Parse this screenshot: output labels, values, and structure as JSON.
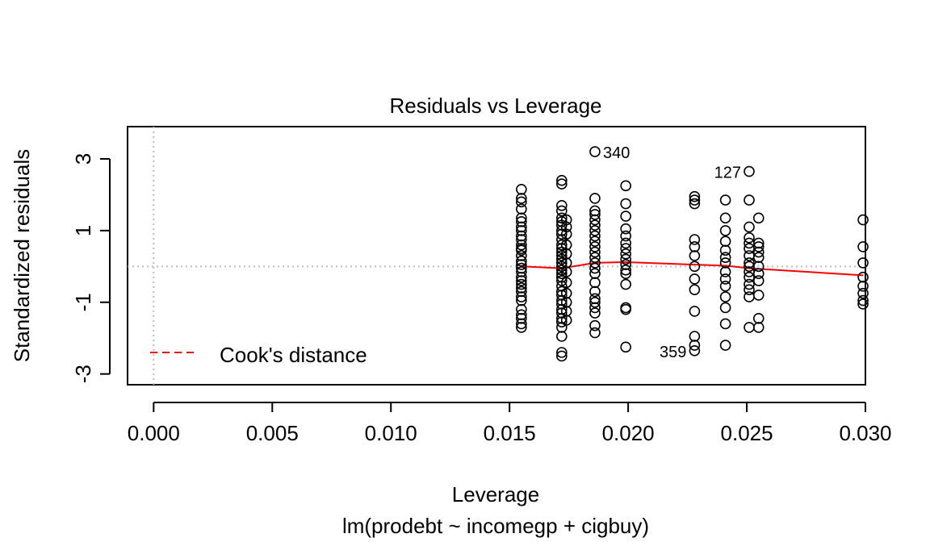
{
  "chart_data": {
    "type": "scatter",
    "title": "Residuals vs Leverage",
    "xlabel": "Leverage",
    "ylabel": "Standardized residuals",
    "subtitle": "lm(prodebt ~ incomegp + cigbuy)",
    "xlim": [
      -0.0011,
      0.03
    ],
    "ylim": [
      -3.3,
      3.9
    ],
    "xticks": [
      "0.000",
      "0.005",
      "0.010",
      "0.015",
      "0.020",
      "0.025",
      "0.030"
    ],
    "xtick_values": [
      0,
      0.005,
      0.01,
      0.015,
      0.02,
      0.025,
      0.03
    ],
    "yticks": [
      "-3",
      "-1",
      "1",
      "3"
    ],
    "ytick_values": [
      -3,
      -1,
      1,
      3
    ],
    "legend": {
      "label": "Cook's distance",
      "placement": "bottom-left",
      "color": "#ff0000"
    },
    "colors": {
      "points": "#000000",
      "smooth": "#ff0000",
      "reference": "#bebebe"
    },
    "labeled_points": [
      {
        "label": "340",
        "x": 0.0186,
        "y": 3.2
      },
      {
        "label": "127",
        "x": 0.0251,
        "y": 2.65
      },
      {
        "label": "359",
        "x": 0.0228,
        "y": -2.35
      }
    ],
    "smooth": {
      "x": [
        0.0155,
        0.0172,
        0.0186,
        0.0199,
        0.0228,
        0.0241,
        0.0251,
        0.0299
      ],
      "y": [
        0.0,
        -0.05,
        0.1,
        0.12,
        0.05,
        0.02,
        -0.05,
        -0.25
      ]
    },
    "groups": [
      {
        "x": 0.0155,
        "y": [
          2.15,
          1.9,
          1.8,
          1.6,
          1.35,
          1.25,
          1.1,
          1.0,
          0.85,
          0.75,
          0.6,
          0.5,
          0.45,
          0.3,
          0.15,
          0.05,
          -0.05,
          -0.15,
          -0.3,
          -0.4,
          -0.5,
          -0.6,
          -0.7,
          -0.85,
          -0.95,
          -1.2,
          -1.35,
          -1.45,
          -1.6,
          -1.7
        ]
      },
      {
        "x": 0.0172,
        "y": [
          2.4,
          2.3,
          1.7,
          1.55,
          1.35,
          1.25,
          1.15,
          1.0,
          0.9,
          0.75,
          0.6,
          0.5,
          0.4,
          0.3,
          0.2,
          0.1,
          0.0,
          -0.1,
          -0.2,
          -0.3,
          -0.4,
          -0.55,
          -0.7,
          -0.8,
          -0.95,
          -1.05,
          -1.2,
          -1.3,
          -1.45,
          -1.55,
          -1.7,
          -1.95,
          -2.4,
          -2.5
        ]
      },
      {
        "x": 0.0174,
        "y": [
          1.3,
          1.1,
          0.9,
          0.6,
          0.35,
          0.1,
          -0.15,
          -0.45,
          -0.75,
          -1.0,
          -1.25,
          -1.5
        ]
      },
      {
        "x": 0.0186,
        "y": [
          3.2,
          1.9,
          1.55,
          1.45,
          1.3,
          1.15,
          1.0,
          0.85,
          0.7,
          0.55,
          0.4,
          0.25,
          0.1,
          -0.05,
          -0.2,
          -0.45,
          -0.7,
          -0.9,
          -1.0,
          -1.15,
          -1.3,
          -1.65,
          -1.85
        ]
      },
      {
        "x": 0.0199,
        "y": [
          2.25,
          1.75,
          1.4,
          1.05,
          0.85,
          0.65,
          0.5,
          0.35,
          0.2,
          0.05,
          -0.1,
          -0.2,
          -0.5,
          -1.15,
          -1.2,
          -2.25
        ]
      },
      {
        "x": 0.0228,
        "y": [
          1.95,
          1.85,
          1.75,
          0.75,
          0.55,
          0.3,
          0.0,
          -0.35,
          -0.65,
          -1.25,
          -1.95,
          -2.2,
          -2.35
        ]
      },
      {
        "x": 0.0241,
        "y": [
          1.85,
          1.35,
          1.0,
          0.7,
          0.45,
          0.25,
          0.1,
          -0.15,
          -0.35,
          -0.55,
          -0.85,
          -1.15,
          -1.6,
          -2.2
        ]
      },
      {
        "x": 0.0251,
        "y": [
          2.65,
          1.85,
          1.1,
          0.8,
          0.65,
          0.5,
          0.3,
          0.1,
          0.0,
          -0.15,
          -0.3,
          -0.5,
          -0.65,
          -0.85,
          -1.7
        ]
      },
      {
        "x": 0.0255,
        "y": [
          1.35,
          0.65,
          0.55,
          0.4,
          0.25,
          0.0,
          -0.2,
          -0.4,
          -0.8,
          -1.45,
          -1.7
        ]
      },
      {
        "x": 0.0299,
        "y": [
          1.3,
          0.55,
          0.1,
          -0.3,
          -0.55,
          -0.75,
          -0.95,
          -1.05
        ]
      }
    ]
  }
}
